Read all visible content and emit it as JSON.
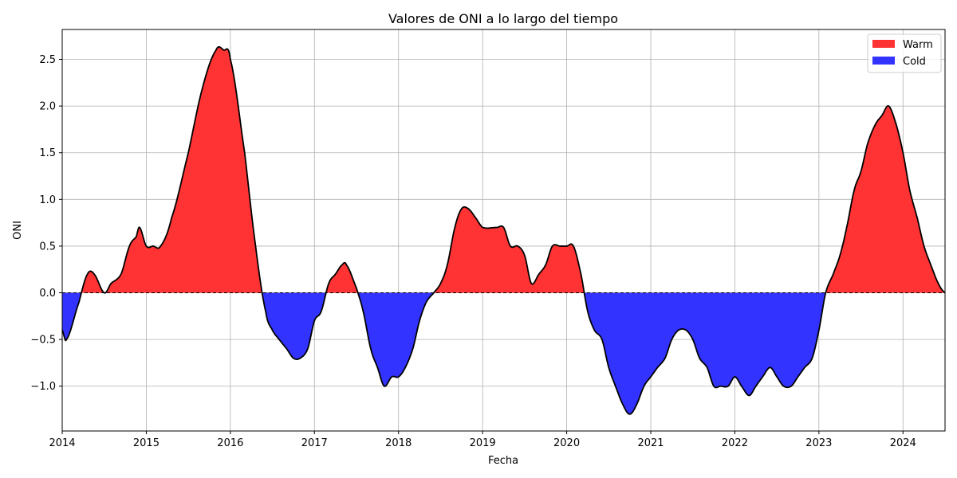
{
  "chart_data": {
    "type": "area",
    "title": "Valores de ONI a lo largo del tiempo",
    "xlabel": "Fecha",
    "ylabel": "ONI",
    "xlim": [
      2014.0,
      2024.5
    ],
    "ylim": [
      -1.48,
      2.82
    ],
    "x_ticks": [
      2014,
      2015,
      2016,
      2017,
      2018,
      2019,
      2020,
      2021,
      2022,
      2023,
      2024
    ],
    "x_tick_labels": [
      "2014",
      "2015",
      "2016",
      "2017",
      "2018",
      "2019",
      "2020",
      "2021",
      "2022",
      "2023",
      "2024"
    ],
    "y_ticks": [
      -1.0,
      -0.5,
      0.0,
      0.5,
      1.0,
      1.5,
      2.0,
      2.5
    ],
    "y_tick_labels": [
      "−1.0",
      "−0.5",
      "0.0",
      "0.5",
      "1.0",
      "1.5",
      "2.0",
      "2.5"
    ],
    "grid": true,
    "zero_line": "dashed",
    "legend_position": "top-right",
    "colors": {
      "warm": "#ff3333",
      "cold": "#3333ff",
      "line": "#000000"
    },
    "series": [
      {
        "name": "Warm",
        "color": "#ff3333"
      },
      {
        "name": "Cold",
        "color": "#3333ff"
      }
    ],
    "x": [
      2014.0,
      2014.05,
      2014.2,
      2014.3,
      2014.38,
      2014.5,
      2014.58,
      2014.7,
      2014.8,
      2014.88,
      2014.92,
      2015.0,
      2015.08,
      2015.17,
      2015.3,
      2015.5,
      2015.67,
      2015.83,
      2015.92,
      2016.0,
      2016.17,
      2016.3,
      2016.42,
      2016.5,
      2016.58,
      2016.67,
      2016.75,
      2016.83,
      2016.92,
      2017.0,
      2017.08,
      2017.17,
      2017.25,
      2017.33,
      2017.38,
      2017.5,
      2017.58,
      2017.67,
      2017.75,
      2017.83,
      2017.92,
      2018.0,
      2018.08,
      2018.17,
      2018.25,
      2018.33,
      2018.42,
      2018.5,
      2018.58,
      2018.67,
      2018.75,
      2018.83,
      2018.92,
      2019.0,
      2019.17,
      2019.25,
      2019.33,
      2019.42,
      2019.5,
      2019.58,
      2019.67,
      2019.75,
      2019.83,
      2019.92,
      2020.0,
      2020.08,
      2020.17,
      2020.25,
      2020.33,
      2020.42,
      2020.5,
      2020.58,
      2020.67,
      2020.75,
      2020.83,
      2020.92,
      2021.0,
      2021.08,
      2021.17,
      2021.25,
      2021.33,
      2021.42,
      2021.5,
      2021.58,
      2021.67,
      2021.75,
      2021.83,
      2021.92,
      2022.0,
      2022.08,
      2022.17,
      2022.25,
      2022.33,
      2022.42,
      2022.5,
      2022.58,
      2022.67,
      2022.75,
      2022.83,
      2022.92,
      2023.0,
      2023.08,
      2023.17,
      2023.25,
      2023.33,
      2023.42,
      2023.5,
      2023.58,
      2023.67,
      2023.75,
      2023.83,
      2023.92,
      2024.0,
      2024.08,
      2024.17,
      2024.25,
      2024.33,
      2024.42,
      2024.5
    ],
    "y": [
      -0.4,
      -0.5,
      -0.1,
      0.2,
      0.2,
      0.0,
      0.1,
      0.2,
      0.5,
      0.6,
      0.7,
      0.5,
      0.5,
      0.5,
      0.8,
      1.5,
      2.2,
      2.6,
      2.6,
      2.5,
      1.5,
      0.5,
      -0.2,
      -0.4,
      -0.5,
      -0.6,
      -0.7,
      -0.7,
      -0.6,
      -0.3,
      -0.2,
      0.1,
      0.2,
      0.3,
      0.3,
      0.05,
      -0.2,
      -0.6,
      -0.8,
      -1.0,
      -0.9,
      -0.9,
      -0.8,
      -0.6,
      -0.3,
      -0.1,
      0.0,
      0.1,
      0.3,
      0.7,
      0.9,
      0.9,
      0.8,
      0.7,
      0.7,
      0.7,
      0.5,
      0.5,
      0.4,
      0.1,
      0.2,
      0.3,
      0.5,
      0.5,
      0.5,
      0.5,
      0.2,
      -0.2,
      -0.4,
      -0.5,
      -0.8,
      -1.0,
      -1.2,
      -1.3,
      -1.2,
      -1.0,
      -0.9,
      -0.8,
      -0.7,
      -0.5,
      -0.4,
      -0.4,
      -0.5,
      -0.7,
      -0.8,
      -1.0,
      -1.0,
      -1.0,
      -0.9,
      -1.0,
      -1.1,
      -1.0,
      -0.9,
      -0.8,
      -0.9,
      -1.0,
      -1.0,
      -0.9,
      -0.8,
      -0.7,
      -0.4,
      0.0,
      0.2,
      0.4,
      0.7,
      1.1,
      1.3,
      1.6,
      1.8,
      1.9,
      2.0,
      1.8,
      1.5,
      1.1,
      0.8,
      0.5,
      0.3,
      0.1,
      0.0
    ]
  }
}
